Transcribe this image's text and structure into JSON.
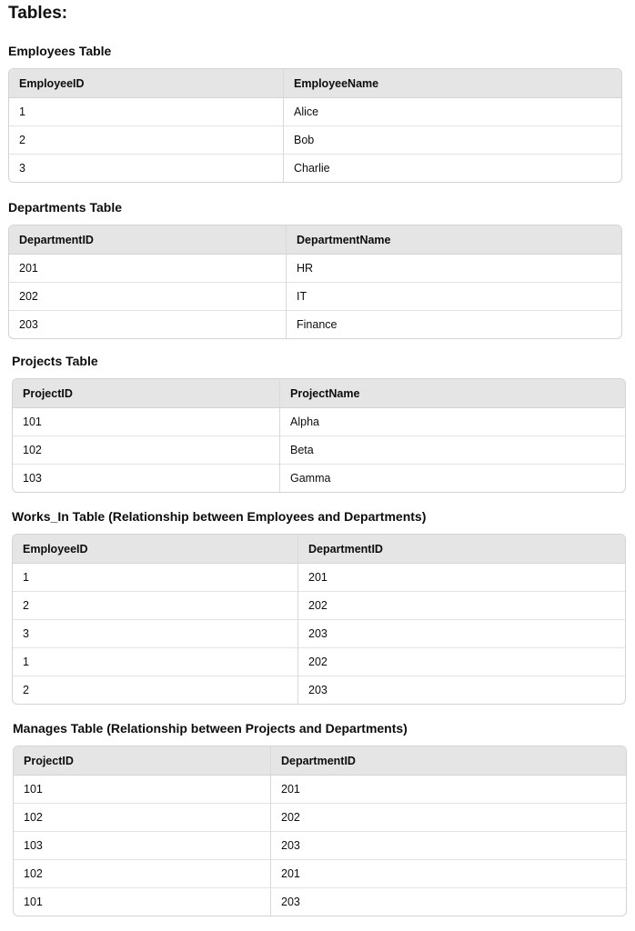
{
  "title": "Tables:",
  "tables": [
    {
      "heading": "Employees Table",
      "headers": [
        "EmployeeID",
        "EmployeeName"
      ],
      "rows": [
        [
          "1",
          "Alice"
        ],
        [
          "2",
          "Bob"
        ],
        [
          "3",
          "Charlie"
        ]
      ]
    },
    {
      "heading": "Departments Table",
      "headers": [
        "DepartmentID",
        "DepartmentName"
      ],
      "rows": [
        [
          "201",
          "HR"
        ],
        [
          "202",
          "IT"
        ],
        [
          "203",
          "Finance"
        ]
      ]
    },
    {
      "heading": "Projects Table",
      "headers": [
        "ProjectID",
        "ProjectName"
      ],
      "rows": [
        [
          "101",
          "Alpha"
        ],
        [
          "102",
          "Beta"
        ],
        [
          "103",
          "Gamma"
        ]
      ]
    },
    {
      "heading": "Works_In Table (Relationship between Employees and Departments)",
      "headers": [
        "EmployeeID",
        "DepartmentID"
      ],
      "rows": [
        [
          "1",
          "201"
        ],
        [
          "2",
          "202"
        ],
        [
          "3",
          "203"
        ],
        [
          "1",
          "202"
        ],
        [
          "2",
          "203"
        ]
      ]
    },
    {
      "heading": "Manages Table (Relationship between Projects and Departments)",
      "headers": [
        "ProjectID",
        "DepartmentID"
      ],
      "rows": [
        [
          "101",
          "201"
        ],
        [
          "102",
          "202"
        ],
        [
          "103",
          "203"
        ],
        [
          "102",
          "201"
        ],
        [
          "101",
          "203"
        ]
      ]
    }
  ]
}
